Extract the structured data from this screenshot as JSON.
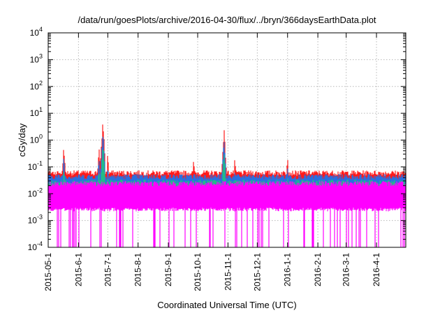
{
  "chart_data": {
    "type": "area",
    "title": "/data/run/goesPlots/archive/2016-04-30/flux/../bryn/366daysEarthData.plot",
    "xlabel": "Coordinated Universal Time (UTC)",
    "ylabel": "cGy/day",
    "y_scale": "log",
    "ylim": [
      0.0001,
      10000
    ],
    "xlim": [
      "2015-05-01",
      "2016-05-01"
    ],
    "grid": true,
    "x_ticks": [
      "2015-05-1",
      "2015-6-1",
      "2015-7-1",
      "2015-8-1",
      "2015-9-1",
      "2015-10-1",
      "2015-11-1",
      "2015-12-1",
      "2016-1-1",
      "2016-2-1",
      "2016-3-1",
      "2016-4-1"
    ],
    "y_ticks": [
      {
        "base": "10",
        "exp": "-4"
      },
      {
        "base": "10",
        "exp": "-3"
      },
      {
        "base": "10",
        "exp": "-2"
      },
      {
        "base": "10",
        "exp": "-1"
      },
      {
        "base": "10",
        "exp": "0"
      },
      {
        "base": "10",
        "exp": "1"
      },
      {
        "base": "10",
        "exp": "2"
      },
      {
        "base": "10",
        "exp": "3"
      },
      {
        "base": "10",
        "exp": "4"
      }
    ],
    "series": [
      {
        "color": "#ff1a1a",
        "baseline": 0.055
      },
      {
        "color": "#2a6fe0",
        "baseline": 0.04
      },
      {
        "color": "#22bb88",
        "baseline": 0.025
      },
      {
        "color": "#ff00ff",
        "baseline": 0.01
      }
    ],
    "peaks": [
      {
        "date": "2015-05-17",
        "value": 0.55
      },
      {
        "date": "2015-06-22",
        "value": 0.5
      },
      {
        "date": "2015-06-26",
        "value": 4.5
      },
      {
        "date": "2015-07-01",
        "value": 0.28
      },
      {
        "date": "2015-09-27",
        "value": 0.18
      },
      {
        "date": "2015-10-28",
        "value": 2.2
      },
      {
        "date": "2015-11-08",
        "value": 0.18
      },
      {
        "date": "2016-01-01",
        "value": 0.26
      }
    ]
  }
}
